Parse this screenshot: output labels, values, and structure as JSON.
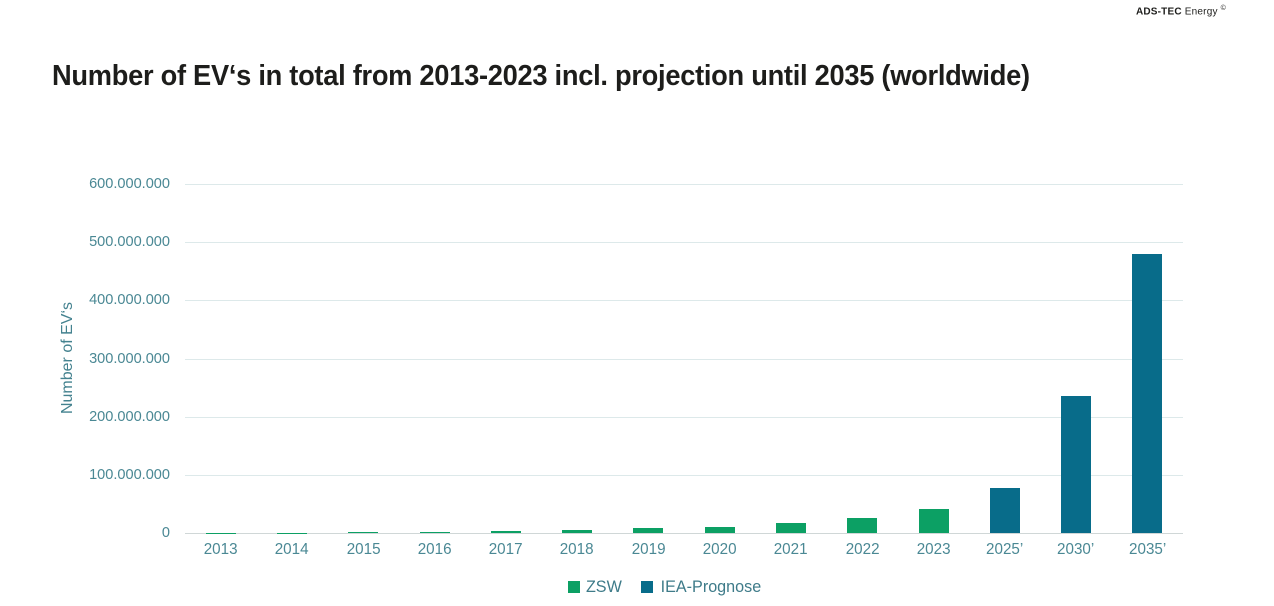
{
  "brand": {
    "bold": "ADS-TEC",
    "regular": "Energy",
    "symbol": "©"
  },
  "title": "Number of EV‘s in total from 2013-2023 incl. projection until 2035 (worldwide)",
  "colors": {
    "zsw_green": "#0ca064",
    "iea_teal": "#086c8a",
    "axis_text": "#4a8894",
    "legend_text": "#3e7b89",
    "gridline": "#dde9ea",
    "baseline": "#d0d7d7",
    "title_text": "#1d1d1b"
  },
  "chart_data": {
    "type": "bar",
    "title": "Number of EV‘s in total from 2013-2023 incl. projection until 2035 (worldwide)",
    "xlabel": "",
    "ylabel": "Number of EV‘s",
    "ylim": [
      0,
      600000000
    ],
    "ytick_interval": 100000000,
    "ytick_labels": [
      "0",
      "100.000.000",
      "200.000.000",
      "300.000.000",
      "400.000.000",
      "500.000.000",
      "600.000.000"
    ],
    "categories": [
      "2013",
      "2014",
      "2015",
      "2016",
      "2017",
      "2018",
      "2019",
      "2020",
      "2021",
      "2022",
      "2023",
      "2025’",
      "2030’",
      "2035’"
    ],
    "series": [
      {
        "name": "ZSW",
        "color": "#0ca064",
        "values": [
          400000,
          700000,
          1300000,
          2000000,
          3200000,
          5600000,
          7900000,
          11000000,
          16500000,
          26000000,
          42000000,
          null,
          null,
          null
        ]
      },
      {
        "name": "IEA-Prognose",
        "color": "#086c8a",
        "values": [
          null,
          null,
          null,
          null,
          null,
          null,
          null,
          null,
          null,
          null,
          null,
          78000000,
          235000000,
          480000000
        ]
      }
    ],
    "grid": "horizontal",
    "legend_position": "bottom"
  }
}
